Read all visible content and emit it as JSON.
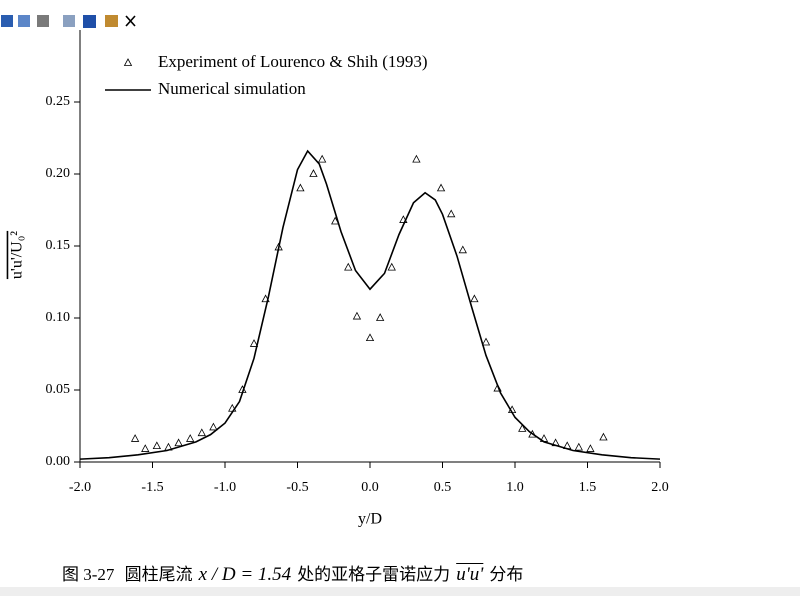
{
  "chart_data": {
    "type": "line",
    "x_label": "y/D",
    "y_label": "u'u'/U₀²",
    "xlim": [
      -2,
      2
    ],
    "ylim": [
      0,
      0.3
    ],
    "xticks": [
      {
        "value": -2,
        "label": "-2.0"
      },
      -1.5,
      {
        "value": -1,
        "label": "-1.0"
      },
      -0.5,
      {
        "value": 0,
        "label": "0.0"
      },
      0.5,
      {
        "value": 1,
        "label": "1.0"
      },
      1.5,
      {
        "value": 2,
        "label": "2.0"
      }
    ],
    "yticks": [
      {
        "value": 0,
        "label": "0.00"
      },
      0.05,
      {
        "value": 0.1,
        "label": "0.10"
      },
      0.15,
      {
        "value": 0.2,
        "label": "0.20"
      },
      0.25
    ],
    "legend": "top-left",
    "series": [
      {
        "name": "Experiment of Lourenco & Shih (1993)",
        "type": "scatter",
        "marker": "triangle",
        "color": "#000000",
        "x": [
          -1.62,
          -1.55,
          -1.47,
          -1.39,
          -1.32,
          -1.24,
          -1.16,
          -1.08,
          -0.95,
          -0.88,
          -0.8,
          -0.72,
          -0.63,
          -0.48,
          -0.39,
          -0.33,
          -0.24,
          -0.15,
          -0.09,
          0,
          0.07,
          0.15,
          0.23,
          0.32,
          0.49,
          0.56,
          0.64,
          0.72,
          0.8,
          0.88,
          0.98,
          1.05,
          1.12,
          1.2,
          1.28,
          1.36,
          1.44,
          1.52,
          1.61
        ],
        "values": [
          0.016,
          0.009,
          0.011,
          0.01,
          0.013,
          0.016,
          0.02,
          0.024,
          0.037,
          0.05,
          0.082,
          0.113,
          0.149,
          0.19,
          0.2,
          0.21,
          0.167,
          0.135,
          0.101,
          0.086,
          0.1,
          0.135,
          0.168,
          0.21,
          0.19,
          0.172,
          0.147,
          0.113,
          0.083,
          0.051,
          0.036,
          0.023,
          0.019,
          0.016,
          0.013,
          0.011,
          0.01,
          0.009,
          0.017
        ]
      },
      {
        "name": "Numerical simulation",
        "type": "line",
        "color": "#000000",
        "x": [
          -2,
          -1.8,
          -1.6,
          -1.4,
          -1.2,
          -1.1,
          -1,
          -0.9,
          -0.8,
          -0.7,
          -0.6,
          -0.5,
          -0.43,
          -0.35,
          -0.3,
          -0.2,
          -0.1,
          0,
          0.1,
          0.2,
          0.3,
          0.38,
          0.45,
          0.5,
          0.6,
          0.7,
          0.8,
          0.9,
          1,
          1.1,
          1.2,
          1.4,
          1.6,
          1.8,
          2
        ],
        "values": [
          0.002,
          0.003,
          0.005,
          0.008,
          0.014,
          0.019,
          0.027,
          0.042,
          0.072,
          0.115,
          0.163,
          0.203,
          0.216,
          0.207,
          0.193,
          0.16,
          0.133,
          0.12,
          0.131,
          0.158,
          0.18,
          0.187,
          0.182,
          0.172,
          0.143,
          0.108,
          0.074,
          0.048,
          0.031,
          0.021,
          0.014,
          0.008,
          0.005,
          0.003,
          0.002
        ]
      }
    ]
  },
  "caption": {
    "label": "图 3-27",
    "text_pre": "圆柱尾流",
    "math": "x / D = 1.54",
    "text_mid": "处的亚格子雷诺应力",
    "math2": "u'u'",
    "text_post": "分布"
  }
}
